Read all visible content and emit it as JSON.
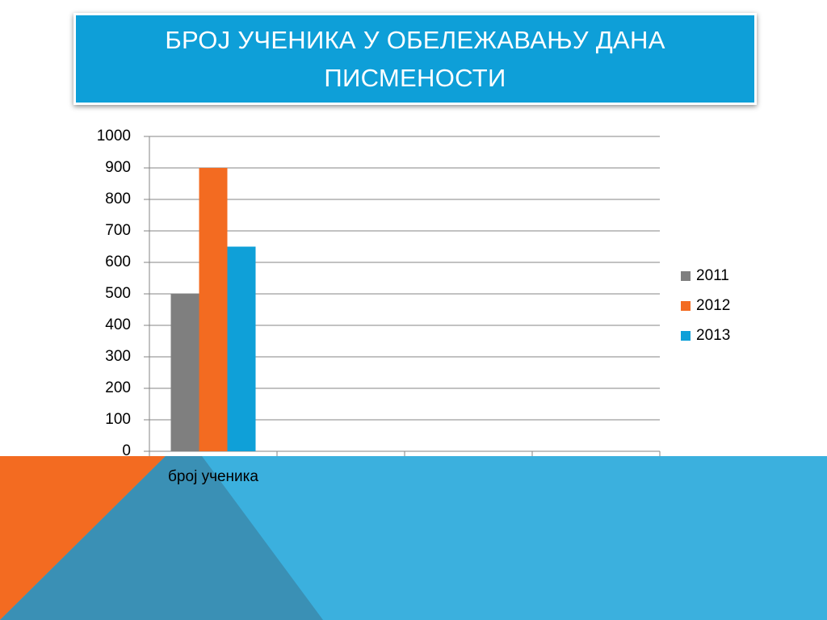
{
  "chart_data": {
    "type": "bar",
    "title": "БРОЈ УЧЕНИКА У ОБЕЛЕЖАВАЊУ ДАНА ПИСМЕНОСТИ",
    "categories": [
      "број ученика",
      null,
      null,
      null
    ],
    "series": [
      {
        "name": "2011",
        "color": "#7f7f7f",
        "values": [
          500,
          null,
          null,
          null
        ]
      },
      {
        "name": "2012",
        "color": "#f36b21",
        "values": [
          900,
          null,
          null,
          null
        ]
      },
      {
        "name": "2013",
        "color": "#0fa0d8",
        "values": [
          650,
          null,
          null,
          null
        ]
      }
    ],
    "ylim": [
      0,
      1000
    ],
    "yticks": [
      0,
      100,
      200,
      300,
      400,
      500,
      600,
      700,
      800,
      900,
      1000
    ],
    "grid": true,
    "legend": "right"
  }
}
